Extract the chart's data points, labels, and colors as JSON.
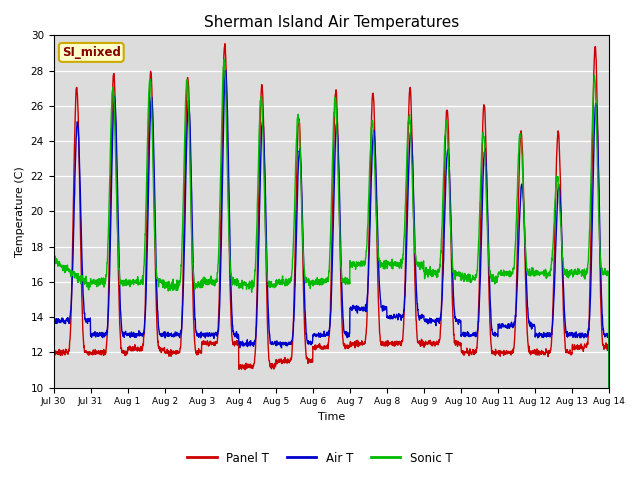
{
  "title": "Sherman Island Air Temperatures",
  "xlabel": "Time",
  "ylabel": "Temperature (C)",
  "ylim": [
    10,
    30
  ],
  "background_color": "#dcdcdc",
  "panel_t_color": "#cc0000",
  "air_t_color": "#0000cc",
  "sonic_t_color": "#00bb00",
  "label_box_color": "#ffffcc",
  "label_box_edge": "#ccaa00",
  "label_text": "SI_mixed",
  "label_text_color": "#880000",
  "x_tick_labels": [
    "Jul 30",
    "Jul 31",
    "Aug 1",
    "Aug 2",
    "Aug 3",
    "Aug 4",
    "Aug 5",
    "Aug 6",
    "Aug 7",
    "Aug 8",
    "Aug 9",
    "Aug 10",
    "Aug 11",
    "Aug 12",
    "Aug 13",
    "Aug 14"
  ],
  "x_tick_positions": [
    0,
    1,
    2,
    3,
    4,
    5,
    6,
    7,
    8,
    9,
    10,
    11,
    12,
    13,
    14,
    15
  ],
  "y_ticks": [
    10,
    12,
    14,
    16,
    18,
    20,
    22,
    24,
    26,
    28,
    30
  ],
  "line_width": 1.0,
  "legend_entries": [
    "Panel T",
    "Air T",
    "Sonic T"
  ]
}
